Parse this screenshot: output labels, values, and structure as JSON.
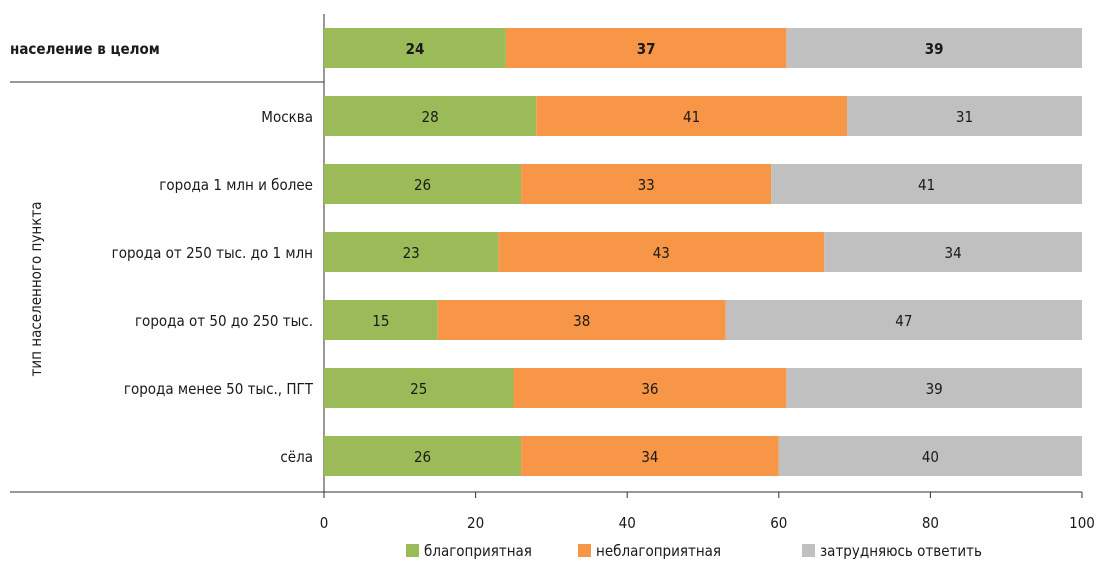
{
  "chart_data": {
    "type": "bar",
    "orientation": "horizontal",
    "stacked": true,
    "group_label": "тип населенного пункта",
    "categories": [
      "население в целом",
      "Москва",
      "города 1 млн и более",
      "города от 250 тыс. до 1 млн",
      "города от 50 до 250 тыс.",
      "города менее 50 тыс., ПГТ",
      "сёла"
    ],
    "series": [
      {
        "name": "благоприятная",
        "color": "#9bbb59",
        "values": [
          24,
          28,
          26,
          23,
          15,
          25,
          26
        ]
      },
      {
        "name": "неблагоприятная",
        "color": "#f79646",
        "values": [
          37,
          41,
          33,
          43,
          38,
          36,
          34
        ]
      },
      {
        "name": "затрудняюсь ответить",
        "color": "#c0c0c0",
        "values": [
          39,
          31,
          41,
          34,
          47,
          39,
          40
        ]
      }
    ],
    "xticks": [
      "0",
      "20",
      "40",
      "60",
      "80",
      "100"
    ],
    "xlim": [
      0,
      100
    ],
    "legend_position": "bottom",
    "grid": false
  }
}
